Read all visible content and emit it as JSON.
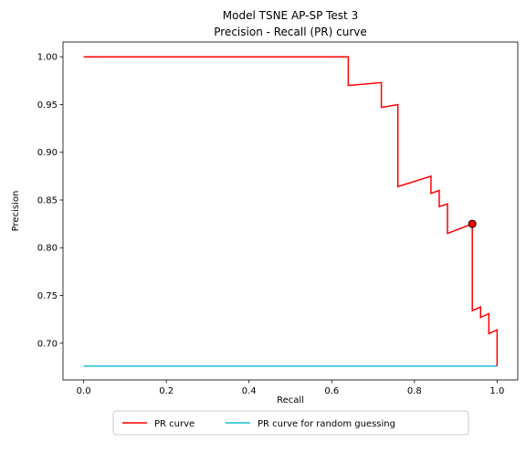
{
  "chart_data": {
    "type": "line",
    "title": [
      "Model TSNE AP-SP Test 3",
      "Precision - Recall (PR) curve"
    ],
    "xlabel": "Recall",
    "ylabel": "Precision",
    "xlim": [
      -0.05,
      1.05
    ],
    "ylim": [
      0.6615,
      1.0155
    ],
    "xticks": [
      0.0,
      0.2,
      0.4,
      0.6,
      0.8,
      1.0
    ],
    "xtick_labels": [
      "0.0",
      "0.2",
      "0.4",
      "0.6",
      "0.8",
      "1.0"
    ],
    "yticks": [
      0.7,
      0.75,
      0.8,
      0.85,
      0.9,
      0.95,
      1.0
    ],
    "ytick_labels": [
      "0.70",
      "0.75",
      "0.80",
      "0.85",
      "0.90",
      "0.95",
      "1.00"
    ],
    "grid": false,
    "legend_position": "bottom-center",
    "series": [
      {
        "name": "PR curve",
        "color": "#ff0000",
        "x": [
          0.0,
          0.64,
          0.64,
          0.72,
          0.72,
          0.76,
          0.76,
          0.84,
          0.84,
          0.86,
          0.86,
          0.88,
          0.88,
          0.94,
          0.94,
          0.96,
          0.96,
          0.98,
          0.98,
          1.0,
          1.0
        ],
        "y": [
          1.0,
          1.0,
          0.97,
          0.973,
          0.947,
          0.95,
          0.864,
          0.875,
          0.857,
          0.86,
          0.843,
          0.846,
          0.815,
          0.825,
          0.734,
          0.738,
          0.727,
          0.731,
          0.71,
          0.714,
          0.676
        ]
      },
      {
        "name": "PR curve for random guessing",
        "color": "#17becf",
        "x": [
          0.0,
          1.0
        ],
        "y": [
          0.676,
          0.676
        ]
      }
    ],
    "marker": {
      "x": 0.94,
      "y": 0.825,
      "fill": "#ff0000",
      "edge": "#000000"
    }
  }
}
